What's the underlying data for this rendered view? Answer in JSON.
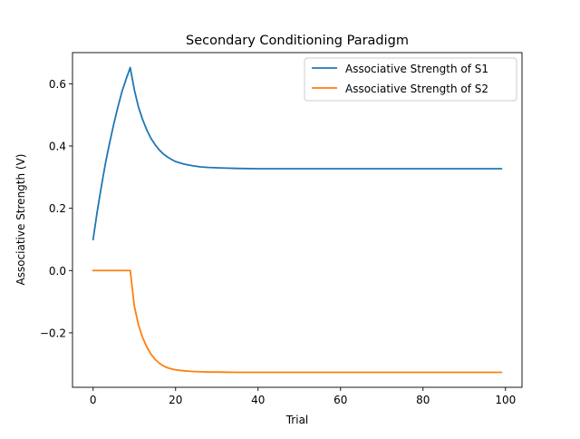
{
  "chart_data": {
    "type": "line",
    "title": "Secondary Conditioning Paradigm",
    "xlabel": "Trial",
    "ylabel": "Associative Strength (V)",
    "xlim": [
      -5,
      104
    ],
    "ylim": [
      -0.375,
      0.7
    ],
    "xticks": [
      0,
      20,
      40,
      60,
      80,
      100
    ],
    "yticks": [
      -0.2,
      0.0,
      0.2,
      0.4,
      0.6
    ],
    "xtick_labels": [
      "0",
      "20",
      "40",
      "60",
      "80",
      "100"
    ],
    "ytick_labels": [
      "−0.2",
      "0.0",
      "0.2",
      "0.4",
      "0.6"
    ],
    "legend_position": "top-right",
    "grid": false,
    "series": [
      {
        "name": "Associative Strength of S1",
        "color": "#1f77b4",
        "x": [
          0,
          1,
          2,
          3,
          4,
          5,
          6,
          7,
          8,
          9,
          10,
          11,
          12,
          13,
          14,
          15,
          16,
          17,
          18,
          19,
          20,
          22,
          24,
          26,
          28,
          30,
          35,
          40,
          50,
          60,
          70,
          80,
          90,
          99
        ],
        "y": [
          0.1,
          0.19,
          0.27,
          0.345,
          0.41,
          0.47,
          0.525,
          0.575,
          0.615,
          0.652,
          0.58,
          0.525,
          0.485,
          0.452,
          0.425,
          0.405,
          0.388,
          0.375,
          0.365,
          0.357,
          0.35,
          0.342,
          0.337,
          0.333,
          0.331,
          0.33,
          0.328,
          0.327,
          0.327,
          0.327,
          0.327,
          0.327,
          0.327,
          0.327
        ]
      },
      {
        "name": "Associative Strength of S2",
        "color": "#ff7f0e",
        "x": [
          0,
          1,
          2,
          3,
          4,
          5,
          6,
          7,
          8,
          9,
          10,
          11,
          12,
          13,
          14,
          15,
          16,
          17,
          18,
          19,
          20,
          22,
          24,
          26,
          28,
          30,
          35,
          40,
          50,
          60,
          70,
          80,
          90,
          99
        ],
        "y": [
          0.0,
          0.0,
          0.0,
          0.0,
          0.0,
          0.0,
          0.0,
          0.0,
          0.0,
          0.0,
          -0.115,
          -0.175,
          -0.215,
          -0.245,
          -0.268,
          -0.285,
          -0.297,
          -0.306,
          -0.312,
          -0.316,
          -0.319,
          -0.322,
          -0.324,
          -0.325,
          -0.326,
          -0.326,
          -0.327,
          -0.327,
          -0.327,
          -0.327,
          -0.327,
          -0.327,
          -0.327,
          -0.327
        ]
      }
    ]
  }
}
